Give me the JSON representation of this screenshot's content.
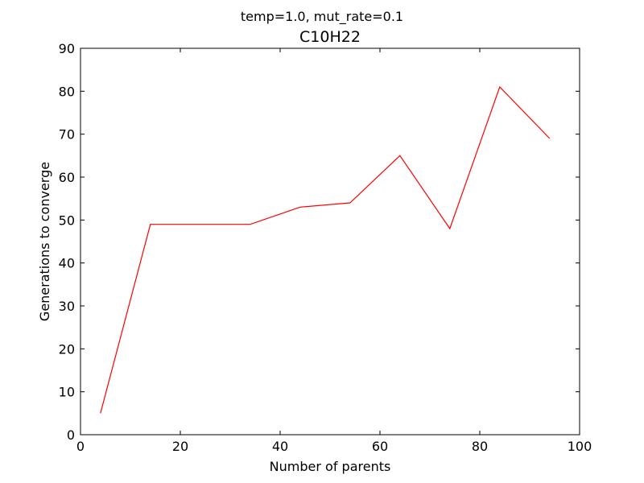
{
  "chart_data": {
    "type": "line",
    "suptitle": "temp=1.0, mut_rate=0.1",
    "title": "C10H22",
    "xlabel": "Number of parents",
    "ylabel": "Generations to converge",
    "xlim": [
      0,
      100
    ],
    "ylim": [
      0,
      90
    ],
    "x_ticks": [
      0,
      20,
      40,
      60,
      80,
      100
    ],
    "y_ticks": [
      0,
      10,
      20,
      30,
      40,
      50,
      60,
      70,
      80,
      90
    ],
    "x_tick_labels": [
      "0",
      "20",
      "40",
      "60",
      "80",
      "100"
    ],
    "y_tick_labels": [
      "0",
      "10",
      "20",
      "30",
      "40",
      "50",
      "60",
      "70",
      "80",
      "90"
    ],
    "grid": false,
    "series": [
      {
        "color": "#ff0000",
        "x": [
          4,
          14,
          24,
          34,
          44,
          54,
          64,
          74,
          84,
          94
        ],
        "y": [
          5,
          49,
          49,
          49,
          53,
          54,
          65,
          48,
          81,
          69
        ]
      }
    ]
  }
}
